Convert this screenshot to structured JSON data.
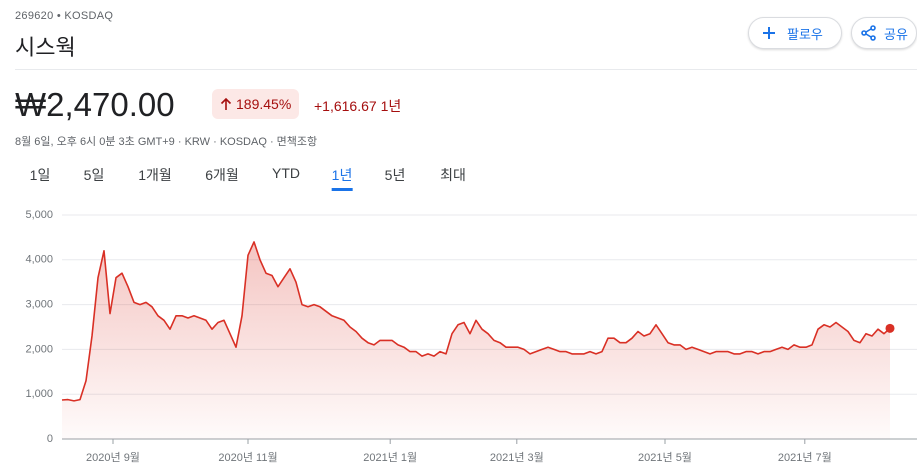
{
  "header": {
    "ticker": "269620 • KOSDAQ",
    "name": "시스웍",
    "follow": "팔로우",
    "share": "공유",
    "price": "₩2,470.00",
    "change_pct": "189.45%",
    "change_abs": "+1,616.67",
    "period": "1년",
    "info": "8월 6일, 오후 6시 0분 3초 GMT+9 · KRW · KOSDAQ · 면책조항"
  },
  "tabs": {
    "items": [
      "1일",
      "5일",
      "1개월",
      "6개월",
      "YTD",
      "1년",
      "5년",
      "최대"
    ],
    "selected": 5
  },
  "chart_data": {
    "type": "line",
    "color": "#d93025",
    "values": [
      870,
      880,
      850,
      880,
      1300,
      2300,
      3600,
      4200,
      2800,
      3600,
      3700,
      3400,
      3050,
      3000,
      3050,
      2950,
      2750,
      2650,
      2450,
      2750,
      2750,
      2700,
      2750,
      2700,
      2650,
      2450,
      2600,
      2650,
      2350,
      2050,
      2750,
      4100,
      4400,
      4000,
      3700,
      3650,
      3400,
      3600,
      3800,
      3500,
      3000,
      2950,
      3000,
      2950,
      2850,
      2750,
      2700,
      2650,
      2500,
      2400,
      2250,
      2150,
      2100,
      2200,
      2200,
      2200,
      2100,
      2050,
      1950,
      1950,
      1850,
      1900,
      1850,
      1950,
      1900,
      2350,
      2550,
      2600,
      2350,
      2650,
      2450,
      2350,
      2200,
      2150,
      2050,
      2050,
      2050,
      2000,
      1900,
      1950,
      2000,
      2050,
      2000,
      1950,
      1950,
      1900,
      1900,
      1900,
      1950,
      1900,
      1950,
      2250,
      2250,
      2150,
      2150,
      2250,
      2400,
      2300,
      2350,
      2550,
      2350,
      2150,
      2100,
      2100,
      2000,
      2050,
      2000,
      1950,
      1900,
      1950,
      1950,
      1950,
      1900,
      1900,
      1950,
      1950,
      1900,
      1950,
      1950,
      2000,
      2050,
      2000,
      2100,
      2050,
      2050,
      2100,
      2450,
      2550,
      2500,
      2600,
      2500,
      2400,
      2200,
      2150,
      2350,
      2300,
      2450,
      2350,
      2470
    ],
    "xlim": [
      0,
      138
    ],
    "xticks": [
      {
        "value": 8.5,
        "label": "2020년 9월"
      },
      {
        "value": 31,
        "label": "2020년 11월"
      },
      {
        "value": 54.7,
        "label": "2021년 1월"
      },
      {
        "value": 75.8,
        "label": "2021년 3월"
      },
      {
        "value": 100.5,
        "label": "2021년 5월"
      },
      {
        "value": 123.8,
        "label": "2021년 7월"
      }
    ],
    "ylim": [
      0,
      5000
    ],
    "yticks": [
      0,
      {
        "value": 1000,
        "label": "1,000"
      },
      {
        "value": 2000,
        "label": "2,000"
      },
      {
        "value": 3000,
        "label": "3,000"
      },
      {
        "value": 4000,
        "label": "4,000"
      },
      {
        "value": 5000,
        "label": "5,000"
      }
    ],
    "grid": true
  }
}
